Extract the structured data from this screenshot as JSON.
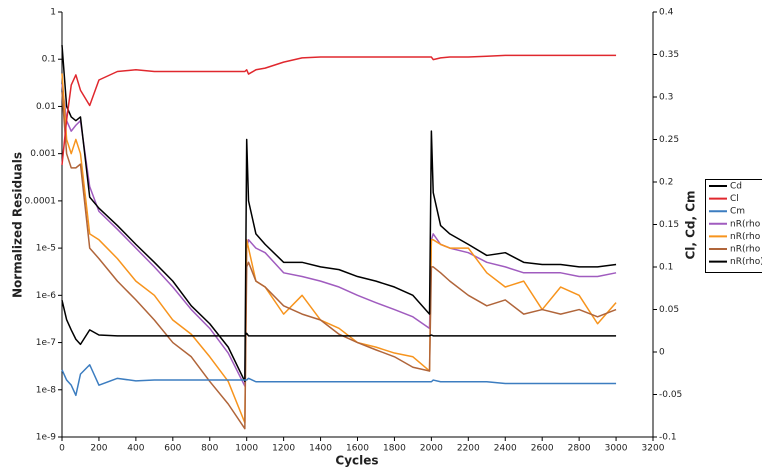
{
  "chart_data": {
    "type": "line",
    "xlabel": "Cycles",
    "ylabel": "Normalized Residuals",
    "y2label": "Cl, Cd, Cm",
    "log_y": true,
    "legend": "right",
    "xlim": [
      0,
      3200
    ],
    "xticks": [
      0,
      200,
      400,
      600,
      800,
      1000,
      1200,
      1400,
      1600,
      1800,
      2000,
      2200,
      2400,
      2600,
      2800,
      3000,
      3200
    ],
    "ylim": [
      1e-09,
      1
    ],
    "yticks": [
      {
        "value": 1e-09,
        "label": "1e-9"
      },
      {
        "value": 1e-08,
        "label": "1e-8"
      },
      {
        "value": 1e-07,
        "label": "1e-7"
      },
      {
        "value": 1e-06,
        "label": "1e-6"
      },
      {
        "value": 1e-05,
        "label": "1e-5"
      },
      0.0001,
      0.001,
      0.01,
      0.1,
      1
    ],
    "y2lim": [
      -0.1,
      0.4
    ],
    "y2ticks": [
      -0.1,
      -0.05,
      0,
      0.05,
      0.1,
      0.15,
      0.2,
      0.25,
      0.3,
      0.35,
      0.4
    ],
    "x": [
      0,
      25,
      50,
      75,
      100,
      150,
      200,
      300,
      400,
      500,
      600,
      700,
      800,
      900,
      990,
      1000,
      1010,
      1050,
      1100,
      1200,
      1300,
      1400,
      1500,
      1600,
      1700,
      1800,
      1900,
      1990,
      2000,
      2010,
      2050,
      2100,
      2200,
      2300,
      2400,
      2500,
      2600,
      2700,
      2800,
      2900,
      3000
    ],
    "series": [
      {
        "name": "Cd",
        "color": "#000000",
        "axis": "y2",
        "values": [
          0.061,
          0.038,
          0.026,
          0.015,
          0.009,
          0.026,
          0.02,
          0.019,
          0.019,
          0.019,
          0.019,
          0.019,
          0.019,
          0.019,
          0.019,
          0.022,
          0.019,
          0.019,
          0.019,
          0.019,
          0.019,
          0.019,
          0.019,
          0.019,
          0.019,
          0.019,
          0.019,
          0.019,
          0.02,
          0.019,
          0.019,
          0.019,
          0.019,
          0.019,
          0.019,
          0.019,
          0.019,
          0.019,
          0.019,
          0.019,
          0.019
        ]
      },
      {
        "name": "Cl",
        "color": "#e0282e",
        "axis": "y2",
        "values": [
          0.22,
          0.273,
          0.314,
          0.326,
          0.308,
          0.29,
          0.32,
          0.33,
          0.332,
          0.33,
          0.33,
          0.33,
          0.33,
          0.33,
          0.33,
          0.332,
          0.327,
          0.332,
          0.334,
          0.341,
          0.346,
          0.347,
          0.347,
          0.347,
          0.347,
          0.347,
          0.347,
          0.347,
          0.347,
          0.344,
          0.346,
          0.347,
          0.347,
          0.348,
          0.349,
          0.349,
          0.349,
          0.349,
          0.349,
          0.349,
          0.349
        ]
      },
      {
        "name": "Cm",
        "color": "#3c7dc0",
        "axis": "y2",
        "values": [
          -0.021,
          -0.033,
          -0.039,
          -0.051,
          -0.026,
          -0.015,
          -0.039,
          -0.031,
          -0.034,
          -0.033,
          -0.033,
          -0.033,
          -0.033,
          -0.033,
          -0.033,
          -0.033,
          -0.031,
          -0.035,
          -0.035,
          -0.035,
          -0.035,
          -0.035,
          -0.035,
          -0.035,
          -0.035,
          -0.035,
          -0.035,
          -0.035,
          -0.035,
          -0.033,
          -0.035,
          -0.035,
          -0.035,
          -0.035,
          -0.037,
          -0.037,
          -0.037,
          -0.037,
          -0.037,
          -0.037,
          -0.037
        ]
      },
      {
        "name": "nR(rho e",
        "color": "#a05cbf",
        "values": [
          0.03,
          0.005,
          0.003,
          0.004,
          0.005,
          0.0002,
          6e-05,
          2.5e-05,
          1e-05,
          4e-06,
          1.5e-06,
          5e-07,
          2e-07,
          6e-08,
          1.2e-08,
          1e-05,
          1.5e-05,
          1e-05,
          8e-06,
          3e-06,
          2.5e-06,
          2e-06,
          1.5e-06,
          1e-06,
          7e-07,
          5e-07,
          3.5e-07,
          2e-07,
          1.5e-05,
          2e-05,
          1.2e-05,
          1e-05,
          8e-06,
          5e-06,
          4e-06,
          3e-06,
          3e-06,
          3e-06,
          2.5e-06,
          2.5e-06,
          3e-06
        ]
      },
      {
        "name": "nR(rho u",
        "color": "#f7941d",
        "values": [
          0.05,
          0.002,
          0.001,
          0.002,
          0.001,
          2e-05,
          1.5e-05,
          6e-06,
          2e-06,
          1e-06,
          3e-07,
          1.5e-07,
          5e-08,
          1.5e-08,
          2e-09,
          1.5e-05,
          1e-05,
          2e-06,
          1.5e-06,
          4e-07,
          1e-06,
          3e-07,
          2e-07,
          1e-07,
          8e-08,
          6e-08,
          5e-08,
          2.5e-08,
          1.5e-05,
          1.5e-05,
          1.2e-05,
          1e-05,
          1e-05,
          3e-06,
          1.5e-06,
          2e-06,
          5e-07,
          1.5e-06,
          1e-06,
          2.5e-07,
          7e-07
        ]
      },
      {
        "name": "nR(rho v",
        "color": "#b0653a",
        "values": [
          0.02,
          0.001,
          0.0005,
          0.0005,
          0.0006,
          1e-05,
          6e-06,
          2e-06,
          8e-07,
          3e-07,
          1e-07,
          5e-08,
          1.5e-08,
          5e-09,
          1.5e-09,
          4e-06,
          5e-06,
          2e-06,
          1.5e-06,
          6e-07,
          4e-07,
          3e-07,
          1.5e-07,
          1e-07,
          7e-08,
          5e-08,
          3e-08,
          2.5e-08,
          4e-06,
          4e-06,
          3e-06,
          2e-06,
          1e-06,
          6e-07,
          8e-07,
          4e-07,
          5e-07,
          4e-07,
          5e-07,
          3.5e-07,
          5e-07
        ]
      },
      {
        "name": "nR(rho)",
        "color": "#000000",
        "values": [
          0.2,
          0.01,
          0.006,
          0.005,
          0.006,
          0.00012,
          7e-05,
          3e-05,
          1.2e-05,
          5e-06,
          2e-06,
          6e-07,
          2.5e-07,
          8e-08,
          1.5e-08,
          0.002,
          0.0001,
          2e-05,
          1.2e-05,
          5e-06,
          5e-06,
          4e-06,
          3.5e-06,
          2.5e-06,
          2e-06,
          1.5e-06,
          1e-06,
          4e-07,
          0.003,
          0.00015,
          3e-05,
          2e-05,
          1.2e-05,
          7e-06,
          8e-06,
          5e-06,
          4.5e-06,
          4.5e-06,
          4e-06,
          4e-06,
          4.5e-06
        ]
      }
    ]
  }
}
